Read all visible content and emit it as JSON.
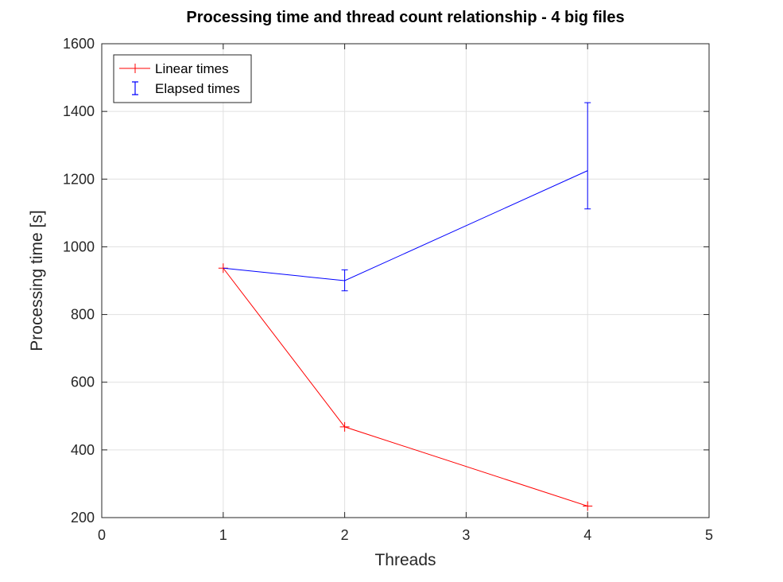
{
  "chart_data": {
    "type": "line",
    "title": "Processing time and thread count relationship - 4 big files",
    "xlabel": "Threads",
    "ylabel": "Processing time [s]",
    "xlim": [
      0,
      5
    ],
    "ylim": [
      200,
      1600
    ],
    "xticks": [
      0,
      1,
      2,
      3,
      4,
      5
    ],
    "yticks": [
      200,
      400,
      600,
      800,
      1000,
      1200,
      1400,
      1600
    ],
    "grid": true,
    "legend_position": "top-left",
    "series": [
      {
        "name": "Linear times",
        "color": "#ff0000",
        "marker": "plus",
        "x": [
          1,
          2,
          4
        ],
        "y": [
          937,
          468,
          234
        ]
      },
      {
        "name": "Elapsed times",
        "color": "#0000ff",
        "marker": "errorbar",
        "x": [
          1,
          2,
          4
        ],
        "y": [
          937,
          900,
          1225
        ],
        "err_low": [
          937,
          870,
          1112
        ],
        "err_high": [
          937,
          932,
          1426
        ]
      }
    ]
  }
}
